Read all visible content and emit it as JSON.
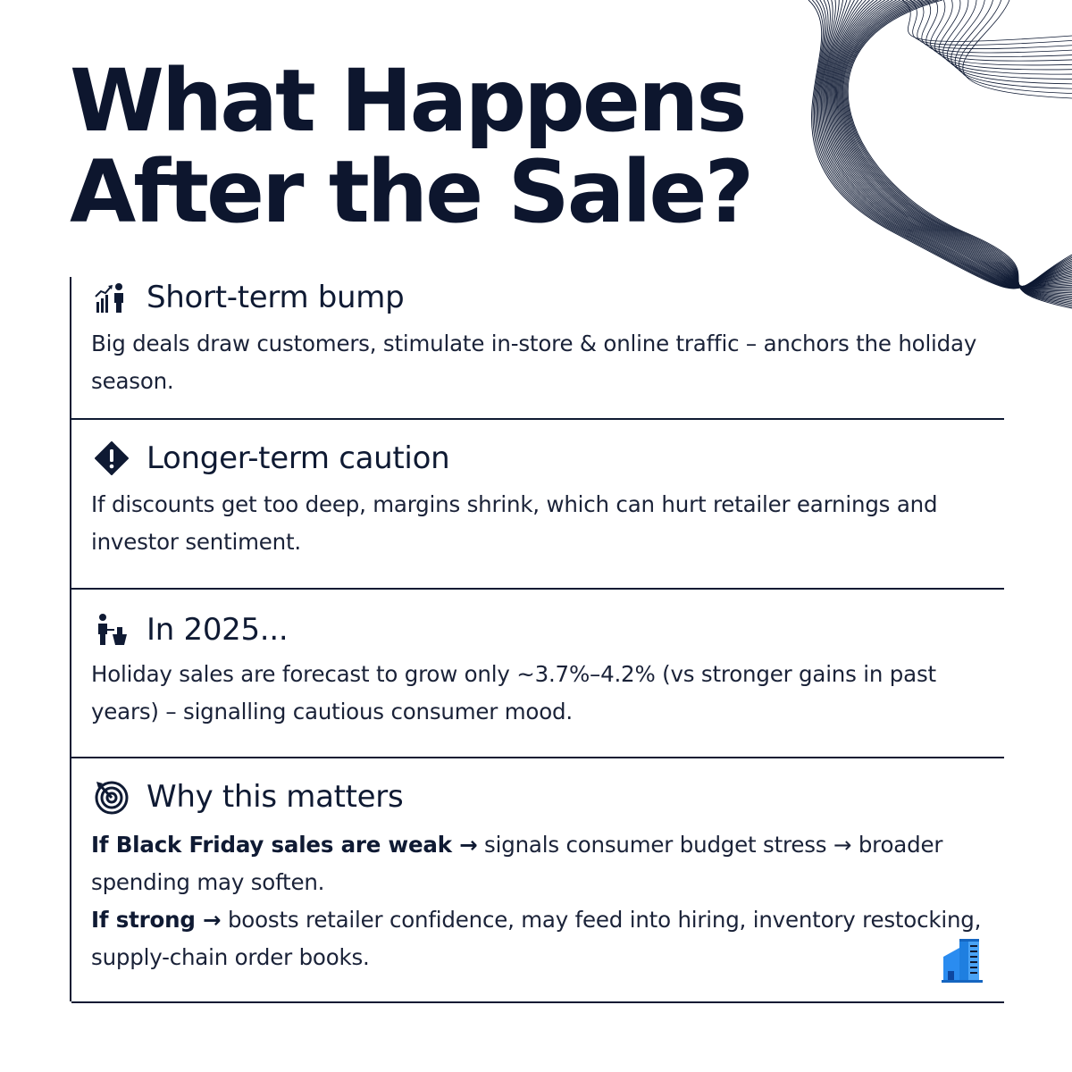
{
  "title": {
    "line1": "What Happens",
    "line2": "After the Sale?"
  },
  "sections": [
    {
      "icon": "chart-person-icon",
      "heading": "Short-term bump",
      "body": "Big deals draw customers, stimulate in-store & online traffic – anchors the holiday season."
    },
    {
      "icon": "warning-diamond-icon",
      "heading": "Longer-term caution",
      "body": "If discounts get too deep, margins shrink, which can hurt retailer earnings and investor sentiment."
    },
    {
      "icon": "shopper-icon",
      "heading": "In 2025...",
      "body": "Holiday sales are forecast to grow only ~3.7%–4.2% (vs stronger gains in past years) – signalling cautious consumer mood."
    },
    {
      "icon": "target-icon",
      "heading": "Why this matters",
      "p1_bold": "If Black Friday sales are weak →",
      "p1_rest": " signals consumer budget stress → broader spending may soften.",
      "p2_bold": "If strong →",
      "p2_rest": " boosts retailer confidence, may feed into hiring, inventory restocking, supply-chain order books."
    }
  ],
  "colors": {
    "ink": "#0f1a33",
    "accent_blue": "#1f7fe0"
  },
  "decor": {
    "corner_icon": "building-icon",
    "background": "wave-lines"
  }
}
